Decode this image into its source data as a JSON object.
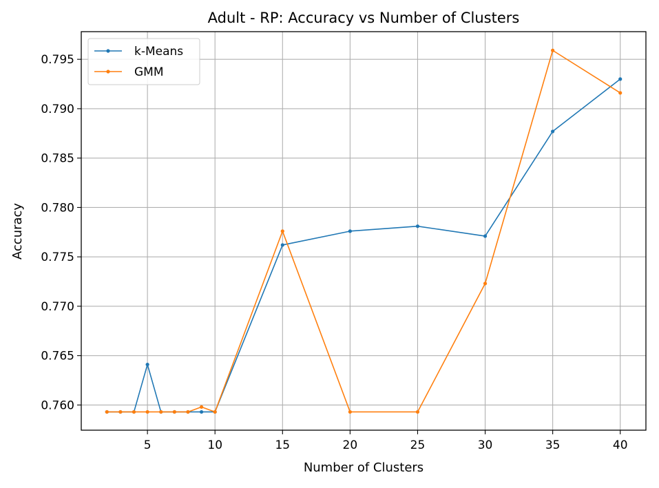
{
  "chart_data": {
    "type": "line",
    "title": "Adult - RP: Accuracy vs Number of Clusters",
    "xlabel": "Number of Clusters",
    "ylabel": "Accuracy",
    "xlim": [
      0.1,
      41.9
    ],
    "ylim": [
      0.75745,
      0.7978
    ],
    "xticks": [
      5,
      10,
      15,
      20,
      25,
      30,
      35,
      40
    ],
    "yticks": [
      0.76,
      0.765,
      0.77,
      0.775,
      0.78,
      0.785,
      0.79,
      0.795
    ],
    "ytick_labels": [
      "0.760",
      "0.765",
      "0.770",
      "0.775",
      "0.780",
      "0.785",
      "0.790",
      "0.795"
    ],
    "grid": true,
    "legend_position": "top-left",
    "series": [
      {
        "name": "k-Means",
        "color": "#1f77b4",
        "x": [
          2,
          3,
          4,
          5,
          6,
          7,
          8,
          9,
          10,
          15,
          20,
          25,
          30,
          35,
          40
        ],
        "values": [
          0.7593,
          0.7593,
          0.7593,
          0.7641,
          0.7593,
          0.7593,
          0.7593,
          0.7593,
          0.7593,
          0.7762,
          0.7776,
          0.7781,
          0.7771,
          0.7877,
          0.793
        ]
      },
      {
        "name": "GMM",
        "color": "#ff7f0e",
        "x": [
          2,
          3,
          4,
          5,
          6,
          7,
          8,
          9,
          10,
          15,
          20,
          25,
          30,
          35,
          40
        ],
        "values": [
          0.7593,
          0.7593,
          0.7593,
          0.7593,
          0.7593,
          0.7593,
          0.7593,
          0.7598,
          0.7593,
          0.7776,
          0.7593,
          0.7593,
          0.7723,
          0.7959,
          0.7916
        ]
      }
    ]
  }
}
